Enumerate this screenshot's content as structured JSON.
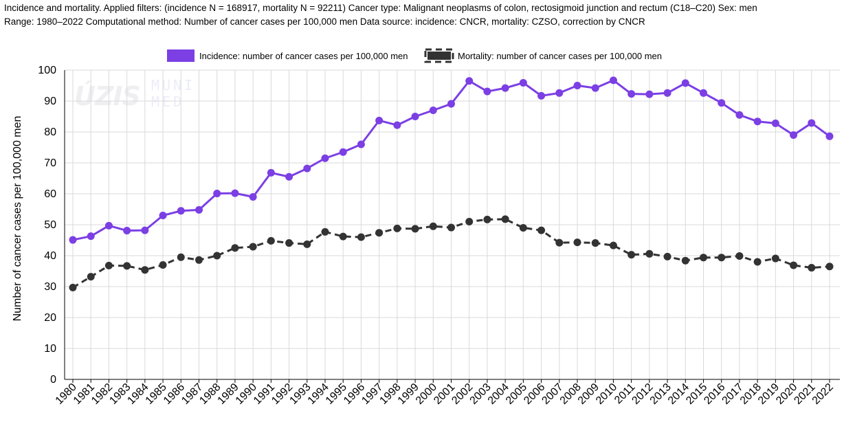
{
  "caption": {
    "line1": "Incidence and mortality. Applied filters: (incidence N = 168917, mortality N = 92211) Cancer type: Malignant neoplasms of colon, rectosigmoid junction and rectum (C18–C20) Sex: men",
    "line2": "Range: 1980–2022 Computational method: Number of cancer cases per 100,000 men Data source: incidence: CNCR, mortality: CZSO, correction by CNCR"
  },
  "watermark": {
    "logo1": "ÚZIS",
    "logo2_line1": "MUNI",
    "logo2_line2": "MED"
  },
  "colors": {
    "incidence": "#7b3fe4",
    "mortality": "#333333",
    "grid": "#d9d9d9"
  },
  "chart_data": {
    "type": "line",
    "title": "",
    "xlabel": "",
    "ylabel": "Number of cancer cases per 100,000 men",
    "ylim": [
      0,
      100
    ],
    "yticks": [
      0,
      10,
      20,
      30,
      40,
      50,
      60,
      70,
      80,
      90,
      100
    ],
    "grid": true,
    "legend_position": "top-center",
    "x": [
      1980,
      1981,
      1982,
      1983,
      1984,
      1985,
      1986,
      1987,
      1988,
      1989,
      1990,
      1991,
      1992,
      1993,
      1994,
      1995,
      1996,
      1997,
      1998,
      1999,
      2000,
      2001,
      2002,
      2003,
      2004,
      2005,
      2006,
      2007,
      2008,
      2009,
      2010,
      2011,
      2012,
      2013,
      2014,
      2015,
      2016,
      2017,
      2018,
      2019,
      2020,
      2021,
      2022
    ],
    "series": [
      {
        "name": "Incidence: number of cancer cases per 100,000 men",
        "style": "solid",
        "values": [
          45.1,
          46.3,
          49.7,
          48.1,
          48.2,
          53.0,
          54.5,
          54.8,
          60.1,
          60.2,
          59.0,
          66.8,
          65.5,
          68.2,
          71.5,
          73.5,
          76.0,
          83.7,
          82.2,
          85.0,
          87.0,
          89.1,
          96.5,
          93.1,
          94.2,
          95.9,
          91.7,
          92.6,
          95.0,
          94.2,
          96.7,
          92.3,
          92.2,
          92.6,
          95.8,
          92.6,
          89.4,
          85.5,
          83.4,
          82.8,
          79.0,
          82.9,
          78.6
        ]
      },
      {
        "name": "Mortality: number of cancer cases per 100,000 men",
        "style": "dashed",
        "values": [
          29.7,
          33.2,
          36.8,
          36.7,
          35.4,
          37.0,
          39.5,
          38.6,
          40.0,
          42.5,
          42.9,
          44.8,
          44.1,
          43.7,
          47.7,
          46.2,
          46.0,
          47.4,
          48.8,
          48.7,
          49.5,
          49.1,
          51.0,
          51.7,
          51.8,
          49.0,
          48.2,
          44.2,
          44.3,
          44.1,
          43.3,
          40.3,
          40.6,
          39.7,
          38.4,
          39.4,
          39.4,
          39.9,
          38.0,
          39.1,
          36.9,
          36.1,
          36.5
        ]
      }
    ]
  }
}
